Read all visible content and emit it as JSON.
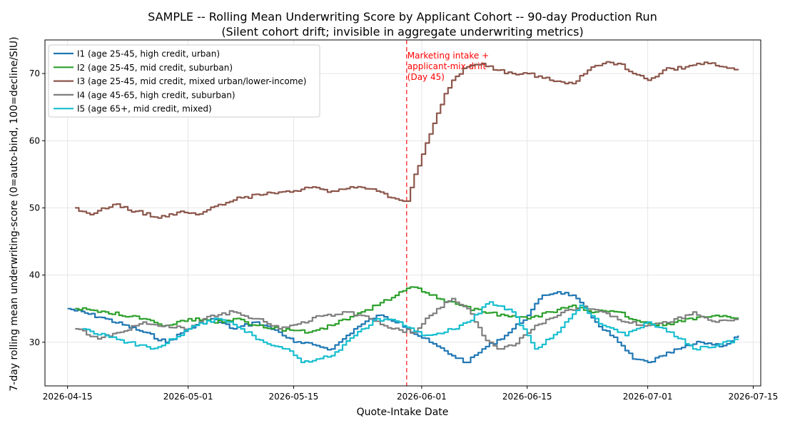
{
  "chart_data": {
    "type": "line",
    "title": "SAMPLE -- Rolling Mean Underwriting Score by Applicant Cohort -- 90-day Production Run",
    "subtitle": "(Silent cohort drift; invisible in aggregate underwriting metrics)",
    "xlabel": "Quote-Intake Date",
    "ylabel": "7-day rolling mean underwriting-score (0=auto-bind, 100=decline/SIU)",
    "xlim": [
      "2026-04-12",
      "2026-07-16"
    ],
    "ylim": [
      23.5,
      75
    ],
    "x_ticks": [
      "2026-04-15",
      "2026-05-01",
      "2026-05-15",
      "2026-06-01",
      "2026-06-15",
      "2026-07-01",
      "2026-07-15"
    ],
    "y_ticks": [
      30,
      40,
      50,
      60,
      70
    ],
    "grid": true,
    "legend_position": "top-left",
    "annotation": {
      "date": "2026-05-30",
      "lines": [
        "Marketing intake +",
        "applicant-mix drift",
        "(Day 45)"
      ],
      "color": "#ff0000"
    },
    "series": [
      {
        "name": "I1 (age 25-45, high credit, urban)",
        "color": "#1f77b4",
        "points": [
          [
            "2026-04-15",
            35.0
          ],
          [
            "2026-04-20",
            33.5
          ],
          [
            "2026-04-25",
            31.5
          ],
          [
            "2026-04-28",
            30.0
          ],
          [
            "2026-05-01",
            32.0
          ],
          [
            "2026-05-04",
            33.5
          ],
          [
            "2026-05-07",
            32.0
          ],
          [
            "2026-05-10",
            33.0
          ],
          [
            "2026-05-13",
            31.5
          ],
          [
            "2026-05-15",
            30.0
          ],
          [
            "2026-05-18",
            29.5
          ],
          [
            "2026-05-20",
            29.0
          ],
          [
            "2026-05-23",
            32.0
          ],
          [
            "2026-05-26",
            34.0
          ],
          [
            "2026-05-29",
            33.0
          ],
          [
            "2026-05-30",
            32.0
          ],
          [
            "2026-06-02",
            30.0
          ],
          [
            "2026-06-05",
            28.0
          ],
          [
            "2026-06-07",
            27.0
          ],
          [
            "2026-06-09",
            29.0
          ],
          [
            "2026-06-12",
            31.0
          ],
          [
            "2026-06-15",
            34.0
          ],
          [
            "2026-06-17",
            37.0
          ],
          [
            "2026-06-19",
            37.5
          ],
          [
            "2026-06-21",
            37.0
          ],
          [
            "2026-06-24",
            33.0
          ],
          [
            "2026-06-27",
            30.0
          ],
          [
            "2026-06-29",
            27.5
          ],
          [
            "2026-07-01",
            27.0
          ],
          [
            "2026-07-03",
            28.0
          ],
          [
            "2026-07-05",
            29.0
          ],
          [
            "2026-07-08",
            30.0
          ],
          [
            "2026-07-11",
            29.5
          ],
          [
            "2026-07-13",
            31.0
          ]
        ]
      },
      {
        "name": "I2 (age 25-45, mid credit, suburban)",
        "color": "#2ca02c",
        "points": [
          [
            "2026-04-16",
            35.0
          ],
          [
            "2026-04-20",
            34.5
          ],
          [
            "2026-04-25",
            33.5
          ],
          [
            "2026-04-28",
            32.5
          ],
          [
            "2026-05-01",
            33.5
          ],
          [
            "2026-05-04",
            33.0
          ],
          [
            "2026-05-07",
            33.5
          ],
          [
            "2026-05-10",
            32.5
          ],
          [
            "2026-05-13",
            32.0
          ],
          [
            "2026-05-17",
            31.5
          ],
          [
            "2026-05-20",
            32.5
          ],
          [
            "2026-05-23",
            34.0
          ],
          [
            "2026-05-26",
            35.5
          ],
          [
            "2026-05-29",
            37.5
          ],
          [
            "2026-05-31",
            38.2
          ],
          [
            "2026-06-03",
            36.5
          ],
          [
            "2026-06-06",
            35.5
          ],
          [
            "2026-06-09",
            34.5
          ],
          [
            "2026-06-12",
            34.0
          ],
          [
            "2026-06-15",
            33.5
          ],
          [
            "2026-06-18",
            34.5
          ],
          [
            "2026-06-21",
            35.5
          ],
          [
            "2026-06-24",
            34.5
          ],
          [
            "2026-06-27",
            34.5
          ],
          [
            "2026-06-30",
            33.0
          ],
          [
            "2026-07-03",
            32.5
          ],
          [
            "2026-07-06",
            33.5
          ],
          [
            "2026-07-10",
            34.0
          ],
          [
            "2026-07-13",
            33.5
          ]
        ]
      },
      {
        "name": "I3 (age 25-45, mid credit, mixed urban/lower-income)",
        "color": "#8c564b",
        "points": [
          [
            "2026-04-16",
            50.0
          ],
          [
            "2026-04-18",
            49.0
          ],
          [
            "2026-04-21",
            50.5
          ],
          [
            "2026-04-24",
            49.5
          ],
          [
            "2026-04-27",
            48.5
          ],
          [
            "2026-04-30",
            49.5
          ],
          [
            "2026-05-02",
            49.0
          ],
          [
            "2026-05-05",
            50.5
          ],
          [
            "2026-05-08",
            51.5
          ],
          [
            "2026-05-11",
            52.0
          ],
          [
            "2026-05-14",
            52.5
          ],
          [
            "2026-05-17",
            53.0
          ],
          [
            "2026-05-20",
            52.5
          ],
          [
            "2026-05-23",
            53.0
          ],
          [
            "2026-05-26",
            52.5
          ],
          [
            "2026-05-28",
            51.5
          ],
          [
            "2026-05-30",
            51.0
          ],
          [
            "2026-05-31",
            55.0
          ],
          [
            "2026-06-01",
            58.0
          ],
          [
            "2026-06-02",
            61.0
          ],
          [
            "2026-06-04",
            67.0
          ],
          [
            "2026-06-05",
            69.0
          ],
          [
            "2026-06-07",
            71.0
          ],
          [
            "2026-06-09",
            71.5
          ],
          [
            "2026-06-11",
            70.5
          ],
          [
            "2026-06-13",
            70.0
          ],
          [
            "2026-06-15",
            70.0
          ],
          [
            "2026-06-18",
            69.0
          ],
          [
            "2026-06-21",
            68.5
          ],
          [
            "2026-06-23",
            70.5
          ],
          [
            "2026-06-25",
            71.5
          ],
          [
            "2026-06-27",
            71.5
          ],
          [
            "2026-06-29",
            70.0
          ],
          [
            "2026-07-01",
            69.0
          ],
          [
            "2026-07-03",
            70.5
          ],
          [
            "2026-07-06",
            71.0
          ],
          [
            "2026-07-09",
            71.5
          ],
          [
            "2026-07-11",
            71.0
          ],
          [
            "2026-07-13",
            70.5
          ]
        ]
      },
      {
        "name": "I4 (age 45-65, high credit, suburban)",
        "color": "#7f7f7f",
        "points": [
          [
            "2026-04-16",
            32.0
          ],
          [
            "2026-04-19",
            30.5
          ],
          [
            "2026-04-22",
            31.5
          ],
          [
            "2026-04-25",
            33.0
          ],
          [
            "2026-04-28",
            32.5
          ],
          [
            "2026-05-01",
            32.0
          ],
          [
            "2026-05-04",
            34.0
          ],
          [
            "2026-05-07",
            34.5
          ],
          [
            "2026-05-10",
            33.5
          ],
          [
            "2026-05-13",
            32.0
          ],
          [
            "2026-05-16",
            33.0
          ],
          [
            "2026-05-19",
            34.0
          ],
          [
            "2026-05-22",
            34.5
          ],
          [
            "2026-05-25",
            33.5
          ],
          [
            "2026-05-28",
            32.0
          ],
          [
            "2026-05-31",
            31.5
          ],
          [
            "2026-06-02",
            34.0
          ],
          [
            "2026-06-05",
            36.5
          ],
          [
            "2026-06-07",
            35.0
          ],
          [
            "2026-06-09",
            31.0
          ],
          [
            "2026-06-11",
            29.0
          ],
          [
            "2026-06-13",
            29.5
          ],
          [
            "2026-06-16",
            32.5
          ],
          [
            "2026-06-19",
            34.0
          ],
          [
            "2026-06-22",
            35.5
          ],
          [
            "2026-06-25",
            34.5
          ],
          [
            "2026-06-28",
            33.0
          ],
          [
            "2026-07-01",
            32.5
          ],
          [
            "2026-07-04",
            33.0
          ],
          [
            "2026-07-07",
            34.5
          ],
          [
            "2026-07-10",
            33.0
          ],
          [
            "2026-07-13",
            33.5
          ]
        ]
      },
      {
        "name": "I5 (age 65+, mid credit, mixed)",
        "color": "#17becf",
        "points": [
          [
            "2026-04-17",
            32.0
          ],
          [
            "2026-04-20",
            31.0
          ],
          [
            "2026-04-23",
            30.0
          ],
          [
            "2026-04-26",
            29.0
          ],
          [
            "2026-04-29",
            30.5
          ],
          [
            "2026-05-02",
            32.5
          ],
          [
            "2026-05-05",
            33.5
          ],
          [
            "2026-05-08",
            32.0
          ],
          [
            "2026-05-11",
            30.0
          ],
          [
            "2026-05-14",
            29.0
          ],
          [
            "2026-05-16",
            27.0
          ],
          [
            "2026-05-18",
            27.5
          ],
          [
            "2026-05-20",
            28.0
          ],
          [
            "2026-05-23",
            31.0
          ],
          [
            "2026-05-26",
            33.5
          ],
          [
            "2026-05-29",
            33.0
          ],
          [
            "2026-06-01",
            31.0
          ],
          [
            "2026-06-04",
            31.5
          ],
          [
            "2026-06-07",
            33.0
          ],
          [
            "2026-06-10",
            36.0
          ],
          [
            "2026-06-13",
            34.5
          ],
          [
            "2026-06-16",
            29.0
          ],
          [
            "2026-06-19",
            31.5
          ],
          [
            "2026-06-22",
            35.5
          ],
          [
            "2026-06-25",
            32.5
          ],
          [
            "2026-06-28",
            31.0
          ],
          [
            "2026-07-01",
            33.0
          ],
          [
            "2026-07-04",
            31.5
          ],
          [
            "2026-07-07",
            29.0
          ],
          [
            "2026-07-10",
            29.5
          ],
          [
            "2026-07-13",
            30.5
          ]
        ]
      }
    ]
  }
}
